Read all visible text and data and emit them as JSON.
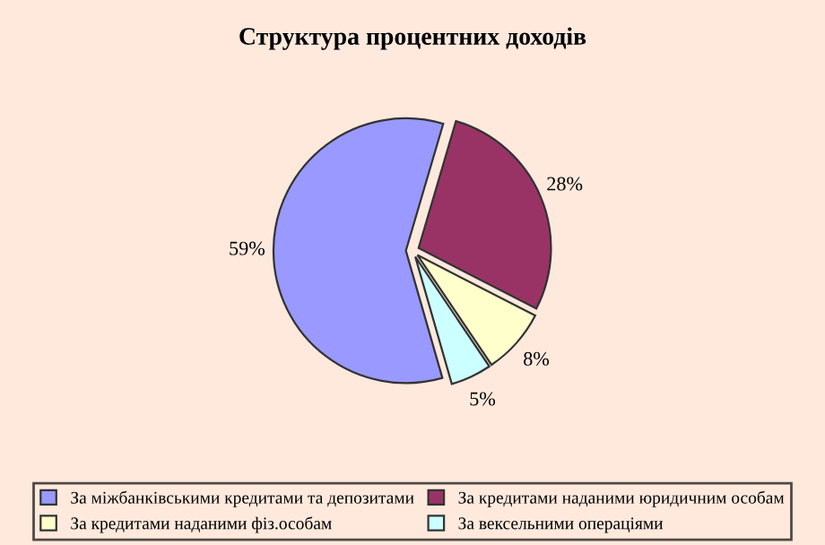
{
  "chart_data": {
    "type": "pie",
    "title": "Структура процентних доходів",
    "categories": [
      "За міжбанківськими кредитами та депозитами",
      "За кредитами наданими юридичним особам",
      "За кредитами наданими фіз.особам",
      "За вексельними операціями"
    ],
    "values": [
      59,
      28,
      8,
      5
    ],
    "colors": [
      "#9999ff",
      "#993366",
      "#ffffcc",
      "#ccffff"
    ],
    "value_labels": [
      "59%",
      "28%",
      "8%",
      "5%"
    ],
    "legend": "bottom"
  }
}
